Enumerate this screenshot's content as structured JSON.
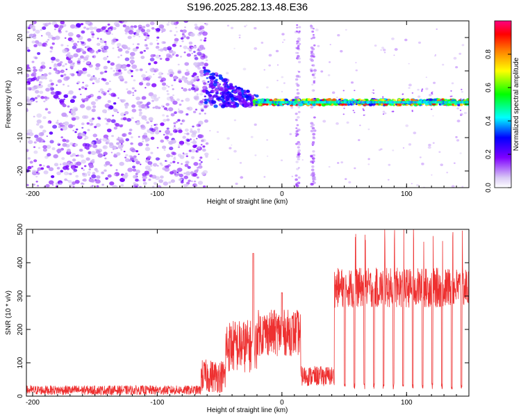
{
  "title": "S196.2025.282.13.48.E36",
  "colors": {
    "points": "#8a2be2",
    "snr_line": "#ee3030",
    "colorbar_stops": [
      "#d9c9f5",
      "#7f00ff",
      "#0000ff",
      "#00ffff",
      "#00ff00",
      "#ffff00",
      "#ff7f00",
      "#ff0000",
      "#ff0080"
    ]
  },
  "chart_data": [
    {
      "type": "scatter",
      "name": "spectrogram",
      "xlabel": "Height of straight line (km)",
      "ylabel": "Frequency (Hz)",
      "xlim": [
        -205,
        150
      ],
      "ylim": [
        -25,
        25
      ],
      "xticks": [
        -200,
        -100,
        0,
        100
      ],
      "yticks": [
        -20,
        -10,
        0,
        10,
        20
      ],
      "colorbar": {
        "label": "Normalized spectral amplitude",
        "range": [
          0,
          1
        ],
        "ticks": [
          "0.0",
          "0.2",
          "0.4",
          "0.6",
          "0.8"
        ]
      },
      "features": [
        {
          "desc": "noise cloud",
          "x_range": [
            -205,
            -60
          ],
          "y_range": [
            -25,
            25
          ],
          "amplitude": [
            0.05,
            0.25
          ]
        },
        {
          "desc": "converging chirp",
          "x_range": [
            -60,
            -20
          ],
          "y_from": [
            2,
            8
          ],
          "y_to": [
            1,
            2
          ]
        },
        {
          "desc": "stable carrier",
          "x_range": [
            -20,
            150
          ],
          "y": 0.5,
          "amplitude": [
            0.4,
            0.95
          ]
        },
        {
          "desc": "vertical stripe",
          "x": 13,
          "y_range": [
            -25,
            25
          ]
        },
        {
          "desc": "vertical stripe",
          "x": 25,
          "y_range": [
            -25,
            25
          ]
        }
      ]
    },
    {
      "type": "line",
      "name": "snr",
      "xlabel": "Height of straight line (km)",
      "ylabel": "SNR (10 * v/v)",
      "xlim": [
        -205,
        150
      ],
      "ylim": [
        0,
        500
      ],
      "xticks": [
        -200,
        -100,
        0,
        100
      ],
      "yticks": [
        0,
        100,
        200,
        300,
        400,
        500
      ],
      "segments": [
        {
          "x_range": [
            -205,
            -65
          ],
          "level": 18,
          "noise": 14
        },
        {
          "x_range": [
            -65,
            -45
          ],
          "level": 60,
          "noise": 50
        },
        {
          "x_range": [
            -45,
            -20
          ],
          "level": 150,
          "noise": 80
        },
        {
          "x_range": [
            -20,
            15
          ],
          "level": 190,
          "noise": 70
        },
        {
          "x_range": [
            15,
            42
          ],
          "level": 60,
          "noise": 30
        },
        {
          "x_range": [
            42,
            150
          ],
          "level": 325,
          "noise": 60
        }
      ],
      "spikes": [
        {
          "x": -23,
          "y": 428
        },
        {
          "x": 0,
          "y": 310
        }
      ],
      "dropout_spacing_km": 7.8,
      "dropout_start_km": 50
    }
  ]
}
